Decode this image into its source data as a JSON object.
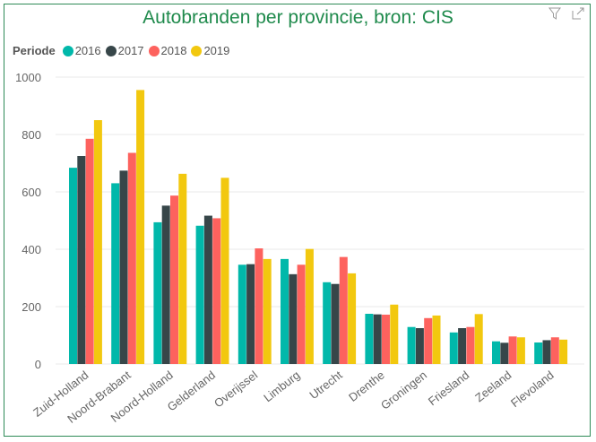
{
  "chart_data": {
    "type": "bar",
    "title": "Autobranden per provincie, bron: CIS",
    "legend_title": "Periode",
    "legend_position": "top-left",
    "categories": [
      "Zuid-Holland",
      "Noord-Brabant",
      "Noord-Holland",
      "Gelderland",
      "Overijssel",
      "Limburg",
      "Utrecht",
      "Drenthe",
      "Groningen",
      "Friesland",
      "Zeeland",
      "Flevoland"
    ],
    "series": [
      {
        "name": "2016",
        "color": "#01b8aa",
        "values": [
          684,
          630,
          494,
          482,
          346,
          366,
          285,
          175,
          129,
          110,
          79,
          75
        ]
      },
      {
        "name": "2017",
        "color": "#374649",
        "values": [
          725,
          674,
          552,
          517,
          348,
          313,
          279,
          173,
          125,
          125,
          74,
          83
        ]
      },
      {
        "name": "2018",
        "color": "#fd625e",
        "values": [
          785,
          736,
          587,
          508,
          403,
          346,
          373,
          172,
          160,
          129,
          96,
          93
        ]
      },
      {
        "name": "2019",
        "color": "#f2c80f",
        "values": [
          850,
          955,
          663,
          649,
          366,
          401,
          316,
          207,
          169,
          174,
          93,
          85
        ]
      }
    ],
    "ylim": [
      0,
      1000
    ],
    "yticks": [
      0,
      200,
      400,
      600,
      800,
      1000
    ],
    "grid": true
  },
  "icons": {
    "filter": "filter-icon",
    "focus": "focus-mode-icon"
  }
}
